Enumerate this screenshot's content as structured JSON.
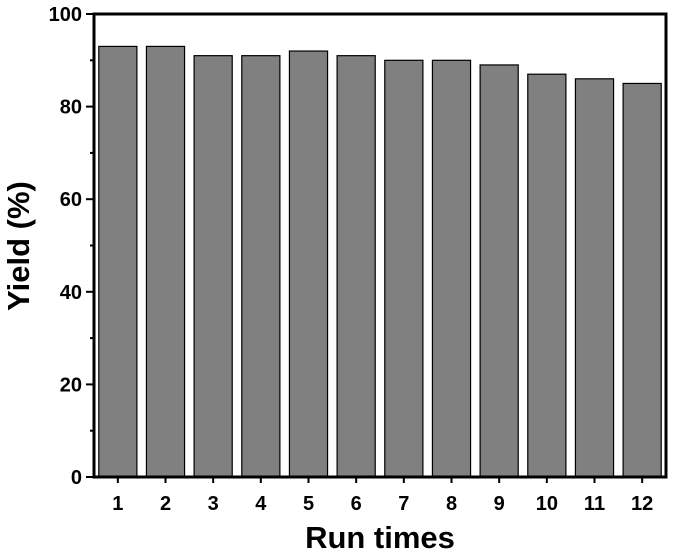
{
  "chart_data": {
    "type": "bar",
    "categories": [
      "1",
      "2",
      "3",
      "4",
      "5",
      "6",
      "7",
      "8",
      "9",
      "10",
      "11",
      "12"
    ],
    "values": [
      93,
      93,
      91,
      91,
      92,
      91,
      90,
      90,
      89,
      87,
      86,
      85
    ],
    "xlabel": "Run times",
    "ylabel": "Yield (%)",
    "ylim": [
      0,
      100
    ],
    "yticks": [
      0,
      20,
      40,
      60,
      80,
      100
    ],
    "bar_color": "#808080",
    "grid": false,
    "legend": "none"
  }
}
